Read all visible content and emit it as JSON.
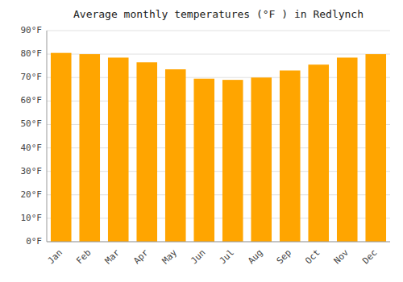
{
  "chart_data": {
    "type": "bar",
    "title": "Average monthly temperatures (°F ) in Redlynch",
    "categories": [
      "Jan",
      "Feb",
      "Mar",
      "Apr",
      "May",
      "Jun",
      "Jul",
      "Aug",
      "Sep",
      "Oct",
      "Nov",
      "Dec"
    ],
    "values": [
      80.5,
      80.0,
      78.5,
      76.5,
      73.5,
      69.5,
      69.0,
      70.0,
      73.0,
      75.5,
      78.5,
      80.0
    ],
    "color": "#FFA500",
    "ylim": [
      0,
      90
    ],
    "yticks": [
      {
        "value": 0,
        "label": "0°F"
      },
      {
        "value": 10,
        "label": "10°F"
      },
      {
        "value": 20,
        "label": "20°F"
      },
      {
        "value": 30,
        "label": "30°F"
      },
      {
        "value": 40,
        "label": "40°F"
      },
      {
        "value": 50,
        "label": "50°F"
      },
      {
        "value": 60,
        "label": "60°F"
      },
      {
        "value": 70,
        "label": "70°F"
      },
      {
        "value": 80,
        "label": "80°F"
      },
      {
        "value": 90,
        "label": "90°F"
      }
    ],
    "grid": true
  }
}
